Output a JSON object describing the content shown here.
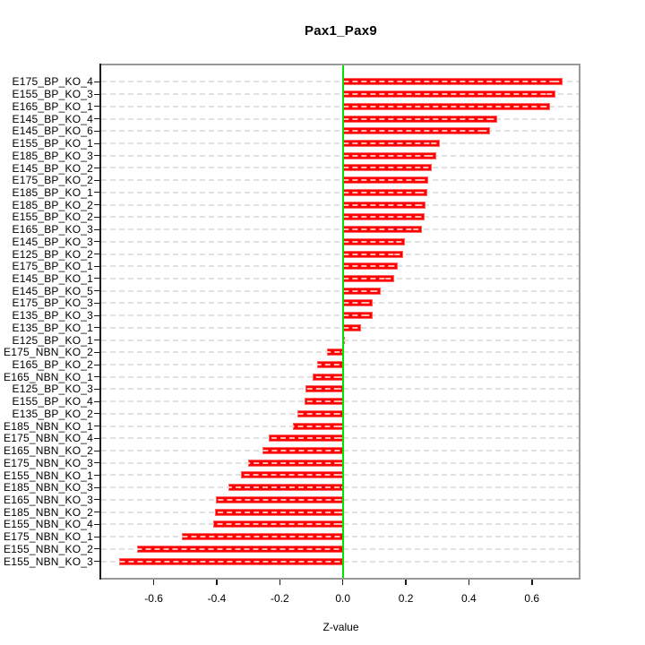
{
  "title": "Pax1_Pax9",
  "xlabel": "Z-value",
  "colors": {
    "bar_fill": "#ff0000",
    "bar_edge": "rgba(255,255,255,0.38)",
    "zero_line": "#00e400",
    "frame": "#999999",
    "axis": "#1b1b1b",
    "grid": "#e1e1e1"
  },
  "chart_data": {
    "type": "bar",
    "orientation": "horizontal",
    "title": "Pax1_Pax9",
    "xlabel": "Z-value",
    "ylabel": "",
    "grid": "dashed horizontal line per category",
    "zero_reference_line": 0.0,
    "xlim": [
      -0.77,
      0.75
    ],
    "x_tick_values": [
      -0.6,
      -0.4,
      -0.2,
      0.0,
      0.2,
      0.4,
      0.6
    ],
    "x_tick_labels": [
      "-0.6",
      "-0.4",
      "-0.2",
      "0.0",
      "0.2",
      "0.4",
      "0.6"
    ],
    "categories": [
      "E175_BP_KO_4",
      "E155_BP_KO_3",
      "E165_BP_KO_1",
      "E145_BP_KO_4",
      "E145_BP_KO_6",
      "E155_BP_KO_1",
      "E185_BP_KO_3",
      "E145_BP_KO_2",
      "E175_BP_KO_2",
      "E185_BP_KO_1",
      "E185_BP_KO_2",
      "E155_BP_KO_2",
      "E165_BP_KO_3",
      "E145_BP_KO_3",
      "E125_BP_KO_2",
      "E175_BP_KO_1",
      "E145_BP_KO_1",
      "E145_BP_KO_5",
      "E175_BP_KO_3",
      "E135_BP_KO_3",
      "E135_BP_KO_1",
      "E125_BP_KO_1",
      "E175_NBN_KO_2",
      "E165_BP_KO_2",
      "E165_NBN_KO_1",
      "E125_BP_KO_3",
      "E155_BP_KO_4",
      "E135_BP_KO_2",
      "E185_NBN_KO_1",
      "E175_NBN_KO_4",
      "E165_NBN_KO_2",
      "E175_NBN_KO_3",
      "E155_NBN_KO_1",
      "E185_NBN_KO_3",
      "E165_NBN_KO_3",
      "E185_NBN_KO_2",
      "E155_NBN_KO_4",
      "E175_NBN_KO_1",
      "E155_NBN_KO_2",
      "E155_NBN_KO_3"
    ],
    "values": [
      0.698,
      0.675,
      0.658,
      0.49,
      0.466,
      0.308,
      0.296,
      0.283,
      0.27,
      0.267,
      0.262,
      0.26,
      0.251,
      0.197,
      0.19,
      0.175,
      0.163,
      0.12,
      0.096,
      0.095,
      0.058,
      0.007,
      -0.051,
      -0.081,
      -0.095,
      -0.118,
      -0.121,
      -0.143,
      -0.157,
      -0.235,
      -0.256,
      -0.301,
      -0.322,
      -0.363,
      -0.404,
      -0.406,
      -0.41,
      -0.512,
      -0.652,
      -0.711
    ]
  }
}
